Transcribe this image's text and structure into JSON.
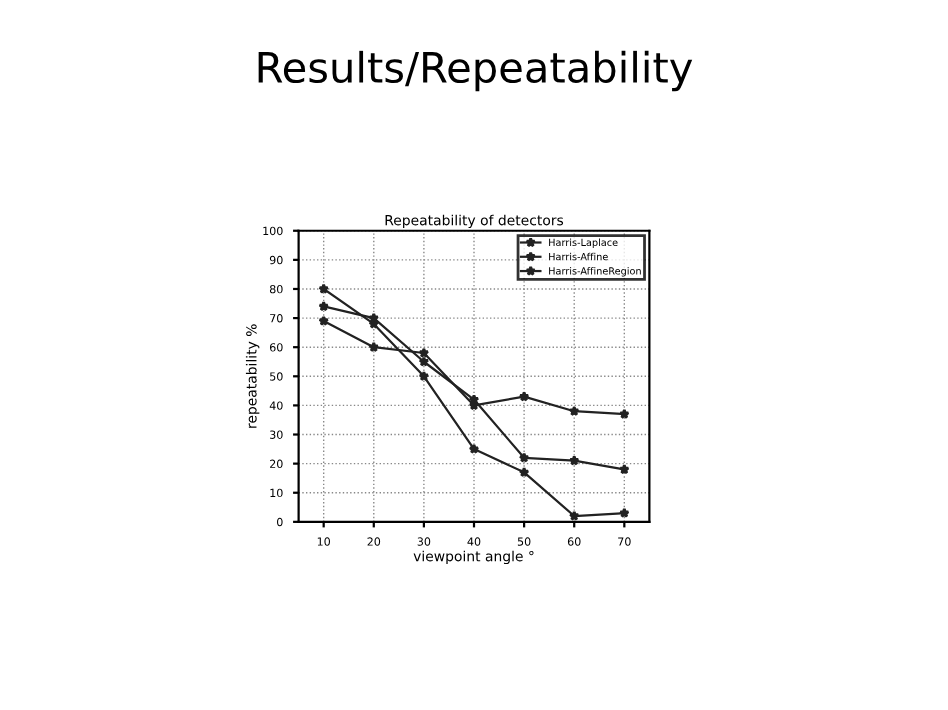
{
  "chart_data": {
    "type": "line",
    "title": "Repeatability of detectors",
    "xlabel": "viewpoint angle °",
    "ylabel": "repeatability %",
    "annotations": [
      "Results/Repeatability"
    ],
    "x": [
      10,
      20,
      30,
      40,
      50,
      60,
      70
    ],
    "series": [
      {
        "name": "Harris-Laplace",
        "color": "#222222",
        "values": [
          69,
          60,
          58,
          40,
          43,
          38,
          37
        ]
      },
      {
        "name": "Harris-Affine",
        "color": "#222222",
        "values": [
          80,
          68,
          50,
          25,
          17,
          2,
          3
        ]
      },
      {
        "name": "Harris-AffineRegion",
        "color": "#222222",
        "values": [
          74,
          70,
          55,
          42,
          22,
          21,
          18
        ]
      }
    ],
    "xlim": [
      5,
      75
    ],
    "xticks": [
      10,
      20,
      30,
      40,
      50,
      60,
      70
    ],
    "ylim": [
      0,
      100
    ],
    "yticks": [
      0,
      10,
      20,
      30,
      40,
      50,
      60,
      70,
      80,
      90,
      100
    ],
    "grid": true,
    "legend": "top right",
    "marker": "star",
    "line_style": "solid"
  }
}
